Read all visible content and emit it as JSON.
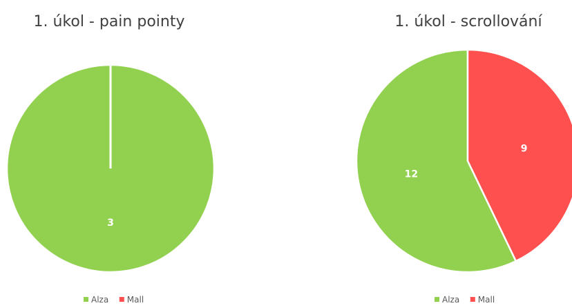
{
  "chart_data": [
    {
      "type": "pie",
      "title": "1. úkol - pain pointy",
      "categories": [
        "Alza",
        "Mall"
      ],
      "values": [
        3,
        0
      ],
      "colors": [
        "#92d050",
        "#ff5050"
      ],
      "data_labels": [
        "3",
        ""
      ],
      "legend_position": "bottom"
    },
    {
      "type": "pie",
      "title": "1. úkol - scrollování",
      "categories": [
        "Alza",
        "Mall"
      ],
      "values": [
        12,
        9
      ],
      "colors": [
        "#92d050",
        "#ff5050"
      ],
      "data_labels": [
        "12",
        "9"
      ],
      "legend_position": "bottom"
    }
  ]
}
